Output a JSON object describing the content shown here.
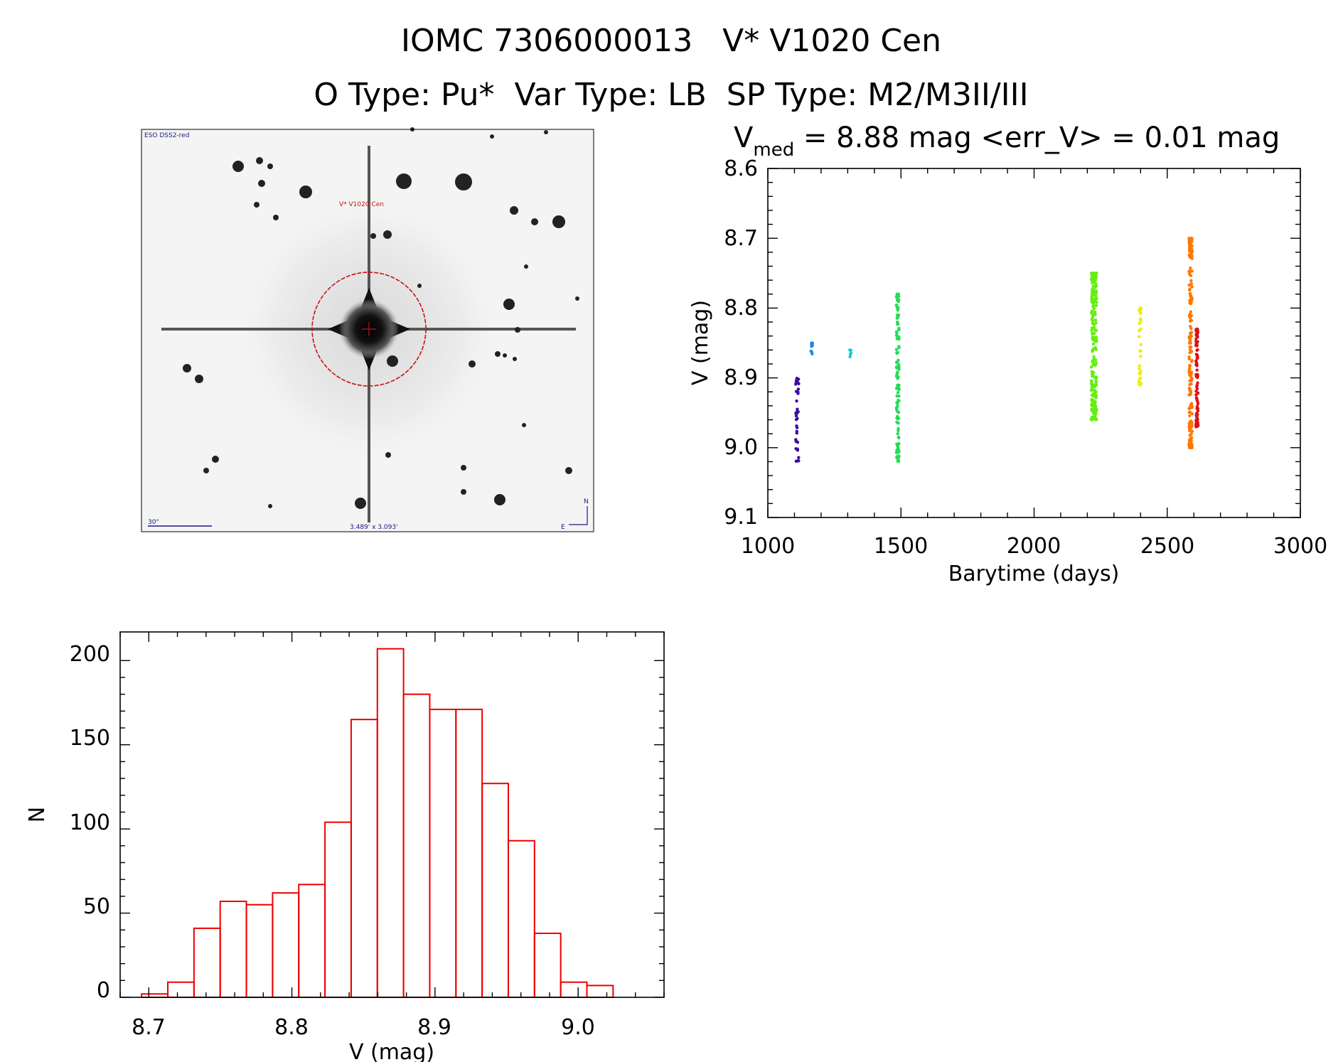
{
  "header": {
    "line1": "IOMC 7306000013   V* V1020 Cen",
    "line2": "O Type: Pu*  Var Type: LB  SP Type: M2/M3II/III"
  },
  "finder": {
    "survey_label": "ESO DSS2-red",
    "object_label": "V* V1020 Cen",
    "scale_label": "30\"",
    "fov_label": "3.489' x 3.093'",
    "north_label": "N",
    "east_label": "E"
  },
  "lightcurve_title": {
    "v": "V",
    "sub": "med",
    "rest": " = 8.88 mag <err_V> = 0.01 mag"
  },
  "chart_data": [
    {
      "type": "scatter",
      "title": "V_med = 8.88 mag <err_V> = 0.01 mag",
      "xlabel": "Barytime (days)",
      "ylabel": "V (mag)",
      "xlim": [
        1000,
        3000
      ],
      "ylim": [
        9.1,
        8.6
      ],
      "xticks": [
        "1000",
        "1500",
        "2000",
        "2500",
        "3000"
      ],
      "yticks": [
        "8.6",
        "8.7",
        "8.8",
        "8.9",
        "9.0",
        "9.1"
      ],
      "series": [
        {
          "name": "season1",
          "color": "#3a0ca3",
          "x_center": 1110,
          "x_spread": 6,
          "v_min": 8.9,
          "v_max": 9.02,
          "n": 40
        },
        {
          "name": "season2",
          "color": "#1e88e5",
          "x_center": 1165,
          "x_spread": 3,
          "v_min": 8.85,
          "v_max": 8.87,
          "n": 8
        },
        {
          "name": "season3",
          "color": "#17c8d6",
          "x_center": 1310,
          "x_spread": 3,
          "v_min": 8.86,
          "v_max": 8.87,
          "n": 5
        },
        {
          "name": "season4",
          "color": "#22dd55",
          "x_center": 1488,
          "x_spread": 5,
          "v_min": 8.78,
          "v_max": 9.02,
          "n": 130
        },
        {
          "name": "season5",
          "color": "#66ee11",
          "x_center": 2225,
          "x_spread": 10,
          "v_min": 8.75,
          "v_max": 8.96,
          "n": 240
        },
        {
          "name": "season6",
          "color": "#eeee00",
          "x_center": 2398,
          "x_spread": 4,
          "v_min": 8.8,
          "v_max": 8.91,
          "n": 40
        },
        {
          "name": "season7",
          "color": "#ff7700",
          "x_center": 2588,
          "x_spread": 6,
          "v_min": 8.7,
          "v_max": 9.0,
          "n": 210
        },
        {
          "name": "season8",
          "color": "#dd1111",
          "x_center": 2612,
          "x_spread": 4,
          "v_min": 8.83,
          "v_max": 8.97,
          "n": 90
        }
      ]
    },
    {
      "type": "bar",
      "subtype": "histogram",
      "xlabel": "V (mag)",
      "ylabel": "N",
      "xlim": [
        8.68,
        9.06
      ],
      "ylim": [
        0,
        217
      ],
      "xticks": [
        "8.7",
        "8.8",
        "8.9",
        "9.0"
      ],
      "yticks": [
        "0",
        "50",
        "100",
        "150",
        "200"
      ],
      "bin_start": 8.695,
      "bin_width": 0.0183,
      "values": [
        2,
        9,
        41,
        57,
        55,
        62,
        67,
        104,
        165,
        207,
        180,
        171,
        171,
        127,
        93,
        38,
        9,
        7
      ],
      "color": "#ee0000"
    }
  ]
}
